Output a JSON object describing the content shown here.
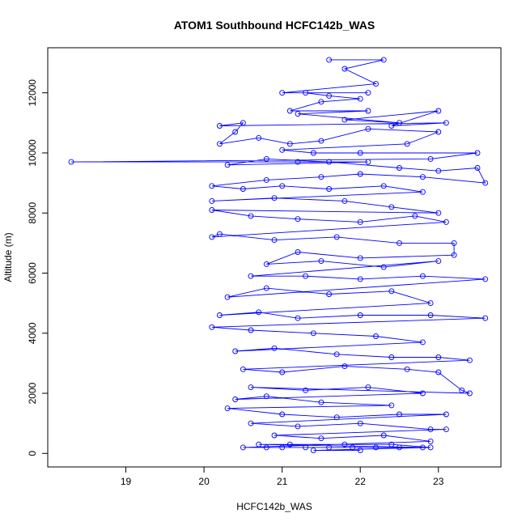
{
  "chart_data": {
    "type": "scatter",
    "title": "ATOM1 Southbound HCFC142b_WAS",
    "xlabel": "HCFC142b_WAS",
    "ylabel": "Altitude (m)",
    "xlim": [
      18.0,
      23.8
    ],
    "ylim": [
      -450,
      13500
    ],
    "xticks": [
      19,
      20,
      21,
      22,
      23
    ],
    "yticks": [
      0,
      2000,
      4000,
      6000,
      8000,
      10000,
      12000
    ],
    "grid": false,
    "marker": "open-circle",
    "connected": true,
    "color": "#0000ff",
    "series": [
      {
        "points": [
          [
            21.6,
            13100
          ],
          [
            22.3,
            13100
          ],
          [
            21.8,
            12800
          ],
          [
            22.2,
            12300
          ],
          [
            21.0,
            12000
          ],
          [
            22.1,
            12000
          ],
          [
            21.3,
            12000
          ],
          [
            21.6,
            11900
          ],
          [
            22.0,
            11800
          ],
          [
            21.5,
            11700
          ],
          [
            21.1,
            11400
          ],
          [
            22.1,
            11400
          ],
          [
            21.2,
            11300
          ],
          [
            22.5,
            11000
          ],
          [
            21.8,
            11100
          ],
          [
            23.0,
            11400
          ],
          [
            22.4,
            10900
          ],
          [
            23.1,
            11000
          ],
          [
            20.2,
            10900
          ],
          [
            20.5,
            11000
          ],
          [
            20.4,
            10700
          ],
          [
            20.2,
            10300
          ],
          [
            20.7,
            10500
          ],
          [
            21.1,
            10300
          ],
          [
            21.5,
            10400
          ],
          [
            22.1,
            10800
          ],
          [
            23.0,
            10700
          ],
          [
            22.6,
            10300
          ],
          [
            21.0,
            10100
          ],
          [
            21.4,
            10000
          ],
          [
            22.0,
            10000
          ],
          [
            23.5,
            10000
          ],
          [
            22.9,
            9800
          ],
          [
            18.3,
            9700
          ],
          [
            21.2,
            9700
          ],
          [
            22.1,
            9700
          ],
          [
            20.3,
            9600
          ],
          [
            20.8,
            9800
          ],
          [
            21.6,
            9700
          ],
          [
            22.5,
            9500
          ],
          [
            23.0,
            9400
          ],
          [
            23.5,
            9500
          ],
          [
            23.6,
            9000
          ],
          [
            22.8,
            9200
          ],
          [
            22.0,
            9300
          ],
          [
            21.5,
            9200
          ],
          [
            20.8,
            9100
          ],
          [
            20.1,
            8900
          ],
          [
            20.5,
            8800
          ],
          [
            21.0,
            8900
          ],
          [
            21.6,
            8800
          ],
          [
            22.3,
            8900
          ],
          [
            22.8,
            8700
          ],
          [
            20.1,
            8400
          ],
          [
            20.9,
            8500
          ],
          [
            21.8,
            8400
          ],
          [
            22.4,
            8200
          ],
          [
            23.0,
            8000
          ],
          [
            20.1,
            8100
          ],
          [
            20.6,
            7900
          ],
          [
            21.2,
            7800
          ],
          [
            22.0,
            7700
          ],
          [
            22.7,
            7900
          ],
          [
            23.1,
            7700
          ],
          [
            20.1,
            7200
          ],
          [
            20.2,
            7300
          ],
          [
            20.9,
            7100
          ],
          [
            21.7,
            7200
          ],
          [
            22.5,
            7000
          ],
          [
            23.2,
            7000
          ],
          [
            23.2,
            6600
          ],
          [
            22.0,
            6500
          ],
          [
            21.2,
            6700
          ],
          [
            20.8,
            6300
          ],
          [
            21.5,
            6400
          ],
          [
            22.3,
            6200
          ],
          [
            23.0,
            6400
          ],
          [
            20.6,
            5900
          ],
          [
            21.3,
            5900
          ],
          [
            22.0,
            5800
          ],
          [
            22.8,
            5900
          ],
          [
            23.6,
            5800
          ],
          [
            20.3,
            5200
          ],
          [
            20.8,
            5500
          ],
          [
            21.6,
            5300
          ],
          [
            22.4,
            5400
          ],
          [
            22.9,
            5000
          ],
          [
            20.2,
            4600
          ],
          [
            20.7,
            4700
          ],
          [
            21.2,
            4500
          ],
          [
            22.0,
            4600
          ],
          [
            22.9,
            4600
          ],
          [
            23.6,
            4500
          ],
          [
            20.1,
            4200
          ],
          [
            20.6,
            4100
          ],
          [
            21.4,
            4000
          ],
          [
            22.2,
            3900
          ],
          [
            22.8,
            3700
          ],
          [
            20.4,
            3400
          ],
          [
            20.9,
            3500
          ],
          [
            21.7,
            3300
          ],
          [
            22.4,
            3200
          ],
          [
            23.0,
            3200
          ],
          [
            23.4,
            3100
          ],
          [
            20.5,
            2800
          ],
          [
            21.0,
            2700
          ],
          [
            21.8,
            2900
          ],
          [
            22.6,
            2800
          ],
          [
            23.0,
            2700
          ],
          [
            23.3,
            2100
          ],
          [
            23.4,
            2000
          ],
          [
            20.6,
            2200
          ],
          [
            21.3,
            2100
          ],
          [
            22.1,
            2200
          ],
          [
            22.8,
            2000
          ],
          [
            20.4,
            1800
          ],
          [
            20.8,
            1900
          ],
          [
            21.5,
            1700
          ],
          [
            22.4,
            1600
          ],
          [
            20.3,
            1500
          ],
          [
            21.0,
            1300
          ],
          [
            21.7,
            1200
          ],
          [
            22.5,
            1300
          ],
          [
            23.1,
            1300
          ],
          [
            20.6,
            1000
          ],
          [
            21.2,
            900
          ],
          [
            22.0,
            1000
          ],
          [
            22.9,
            800
          ],
          [
            23.1,
            800
          ],
          [
            20.9,
            600
          ],
          [
            21.5,
            500
          ],
          [
            22.3,
            600
          ],
          [
            22.9,
            400
          ],
          [
            20.5,
            200
          ],
          [
            20.8,
            200
          ],
          [
            21.0,
            200
          ],
          [
            21.3,
            200
          ],
          [
            21.6,
            200
          ],
          [
            21.9,
            200
          ],
          [
            22.2,
            200
          ],
          [
            22.5,
            200
          ],
          [
            22.8,
            200
          ],
          [
            20.7,
            300
          ],
          [
            21.1,
            300
          ],
          [
            21.8,
            300
          ],
          [
            22.4,
            300
          ],
          [
            22.9,
            200
          ],
          [
            21.4,
            100
          ],
          [
            22.0,
            100
          ]
        ]
      }
    ]
  }
}
